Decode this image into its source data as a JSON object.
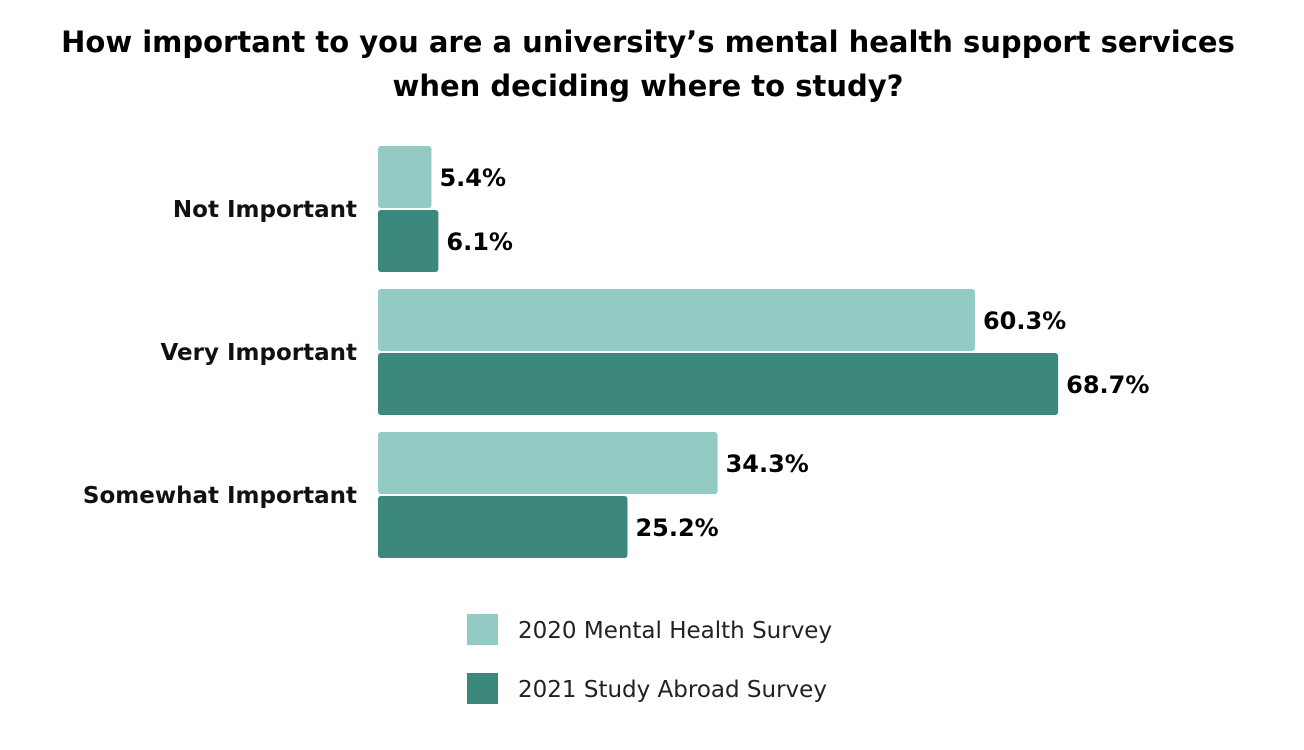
{
  "chart_data": {
    "type": "bar",
    "orientation": "horizontal",
    "title_lines": [
      "How important to you are a university’s mental health support services",
      "when deciding where to study?"
    ],
    "categories": [
      "Not Important",
      "Very Important",
      "Somewhat Important"
    ],
    "series": [
      {
        "name": "2020 Mental Health Survey",
        "values": [
          5.4,
          60.3,
          34.3
        ],
        "labels": [
          "5.4%",
          "60.3%",
          "34.3%"
        ],
        "color": "#93cac4"
      },
      {
        "name": "2021 Study Abroad Survey",
        "values": [
          6.1,
          68.7,
          25.2
        ],
        "labels": [
          "6.1%",
          "68.7%",
          "25.2%"
        ],
        "color": "#3c887c"
      }
    ],
    "xlim": [
      0,
      100
    ],
    "grid": false,
    "legend": "bottom"
  }
}
